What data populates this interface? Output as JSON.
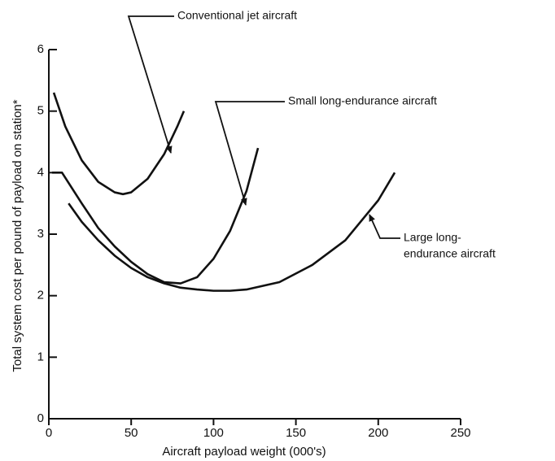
{
  "chart_data": {
    "type": "line",
    "xlabel": "Aircraft payload weight (000's)",
    "ylabel": "Total system cost per pound of payload on station*",
    "xlim": [
      0,
      250
    ],
    "xticks": [
      0,
      50,
      100,
      150,
      200,
      250
    ],
    "ylim": [
      0,
      6
    ],
    "yticks": [
      0,
      1,
      2,
      3,
      4,
      5,
      6
    ],
    "grid": false,
    "series": [
      {
        "color": "#111111",
        "x": [
          3,
          10,
          20,
          30,
          40,
          45,
          50,
          60,
          70,
          78,
          82
        ],
        "values": [
          5.3,
          4.75,
          4.2,
          3.85,
          3.68,
          3.65,
          3.68,
          3.9,
          4.3,
          4.75,
          5.0
        ]
      },
      {
        "color": "#111111",
        "x": [
          2,
          8,
          20,
          30,
          40,
          50,
          60,
          70,
          80,
          90,
          100,
          110,
          120,
          127
        ],
        "values": [
          4.0,
          4.0,
          3.5,
          3.1,
          2.8,
          2.55,
          2.35,
          2.22,
          2.2,
          2.3,
          2.6,
          3.05,
          3.7,
          4.4
        ]
      },
      {
        "color": "#111111",
        "x": [
          12,
          20,
          30,
          40,
          50,
          60,
          70,
          80,
          90,
          100,
          110,
          120,
          140,
          160,
          180,
          200,
          210
        ],
        "values": [
          3.5,
          3.2,
          2.9,
          2.65,
          2.45,
          2.3,
          2.2,
          2.13,
          2.1,
          2.08,
          2.08,
          2.1,
          2.22,
          2.5,
          2.9,
          3.55,
          4.0
        ]
      }
    ],
    "annotations": [
      {
        "lines": [
          "Conventional jet aircraft"
        ]
      },
      {
        "lines": [
          "Small long-endurance aircraft"
        ]
      },
      {
        "lines": [
          "Large long-",
          "endurance aircraft"
        ]
      }
    ]
  }
}
